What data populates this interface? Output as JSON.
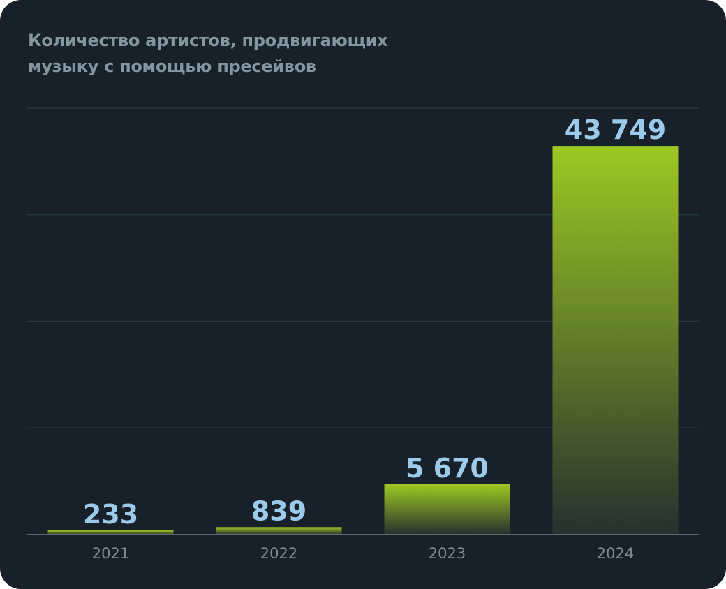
{
  "chart_data": {
    "type": "bar",
    "title_lines": [
      "Количество артистов, продвигающих",
      "музыку с помощью пресейвов"
    ],
    "categories": [
      "2021",
      "2022",
      "2023",
      "2024"
    ],
    "values": [
      233,
      839,
      5670,
      43749
    ],
    "value_labels": [
      "233",
      "839",
      "5 670",
      "43 749"
    ],
    "ylim": [
      0,
      48000
    ],
    "grid": true,
    "colors": {
      "background": "#18212a",
      "bar_top": "#9ec823",
      "bar_bottom": "#25312e",
      "value_label": "#9ccaeb",
      "axis": "#6d7f88",
      "grid": "#26393a"
    }
  }
}
